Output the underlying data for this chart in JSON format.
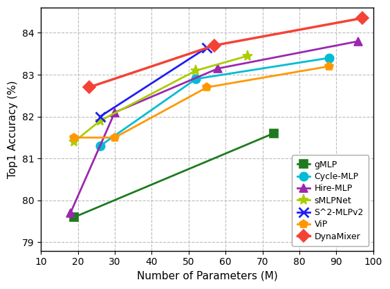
{
  "series": [
    {
      "label": "gMLP",
      "x": [
        19,
        73
      ],
      "y": [
        79.6,
        81.6
      ],
      "color": "#1f7a1f",
      "marker": "s",
      "markersize": 8,
      "linewidth": 2.0,
      "zorder": 2,
      "markerfacecolor": "#1f7a1f"
    },
    {
      "label": "Cycle-MLP",
      "x": [
        26,
        52,
        88
      ],
      "y": [
        81.3,
        82.9,
        83.4
      ],
      "color": "#00bcd4",
      "marker": "o",
      "markersize": 9,
      "linewidth": 2.0,
      "zorder": 3,
      "markerfacecolor": "#00bcd4"
    },
    {
      "label": "Hire-MLP",
      "x": [
        18,
        30,
        58,
        96
      ],
      "y": [
        79.7,
        82.1,
        83.15,
        83.8
      ],
      "color": "#9c27b0",
      "marker": "^",
      "markersize": 9,
      "linewidth": 2.0,
      "zorder": 3,
      "markerfacecolor": "#9c27b0"
    },
    {
      "label": "sMLPNet",
      "x": [
        19,
        26,
        52,
        66
      ],
      "y": [
        81.4,
        81.9,
        83.1,
        83.45
      ],
      "color": "#aacc00",
      "marker": "*",
      "markersize": 11,
      "linewidth": 2.0,
      "zorder": 3,
      "markerfacecolor": "#aacc00"
    },
    {
      "label": "S^2-MLPv2",
      "x": [
        26,
        55
      ],
      "y": [
        82.0,
        83.65
      ],
      "color": "#1e1ef5",
      "marker": "x",
      "markersize": 10,
      "linewidth": 2.0,
      "zorder": 4,
      "markerfacecolor": "none"
    },
    {
      "label": "ViP",
      "x": [
        19,
        30,
        55,
        88
      ],
      "y": [
        81.5,
        81.5,
        82.7,
        83.2
      ],
      "color": "#ff9800",
      "marker": "p",
      "markersize": 9,
      "linewidth": 2.0,
      "zorder": 3,
      "markerfacecolor": "#ff9800"
    },
    {
      "label": "DynaMixer",
      "x": [
        23,
        57,
        97
      ],
      "y": [
        82.7,
        83.7,
        84.35
      ],
      "color": "#f44336",
      "marker": "D",
      "markersize": 9,
      "linewidth": 2.5,
      "zorder": 5,
      "markerfacecolor": "#f44336"
    }
  ],
  "xlabel": "Number of Parameters (M)",
  "ylabel": "Top1 Accuracy (%)",
  "xlim": [
    10,
    100
  ],
  "ylim": [
    78.8,
    84.6
  ],
  "xticks": [
    10,
    20,
    30,
    40,
    50,
    60,
    70,
    80,
    90,
    100
  ],
  "yticks": [
    79,
    80,
    81,
    82,
    83,
    84
  ],
  "legend_loc": "lower right",
  "background_color": "#ffffff",
  "label_fontsize": 11,
  "tick_fontsize": 10,
  "legend_fontsize": 9
}
